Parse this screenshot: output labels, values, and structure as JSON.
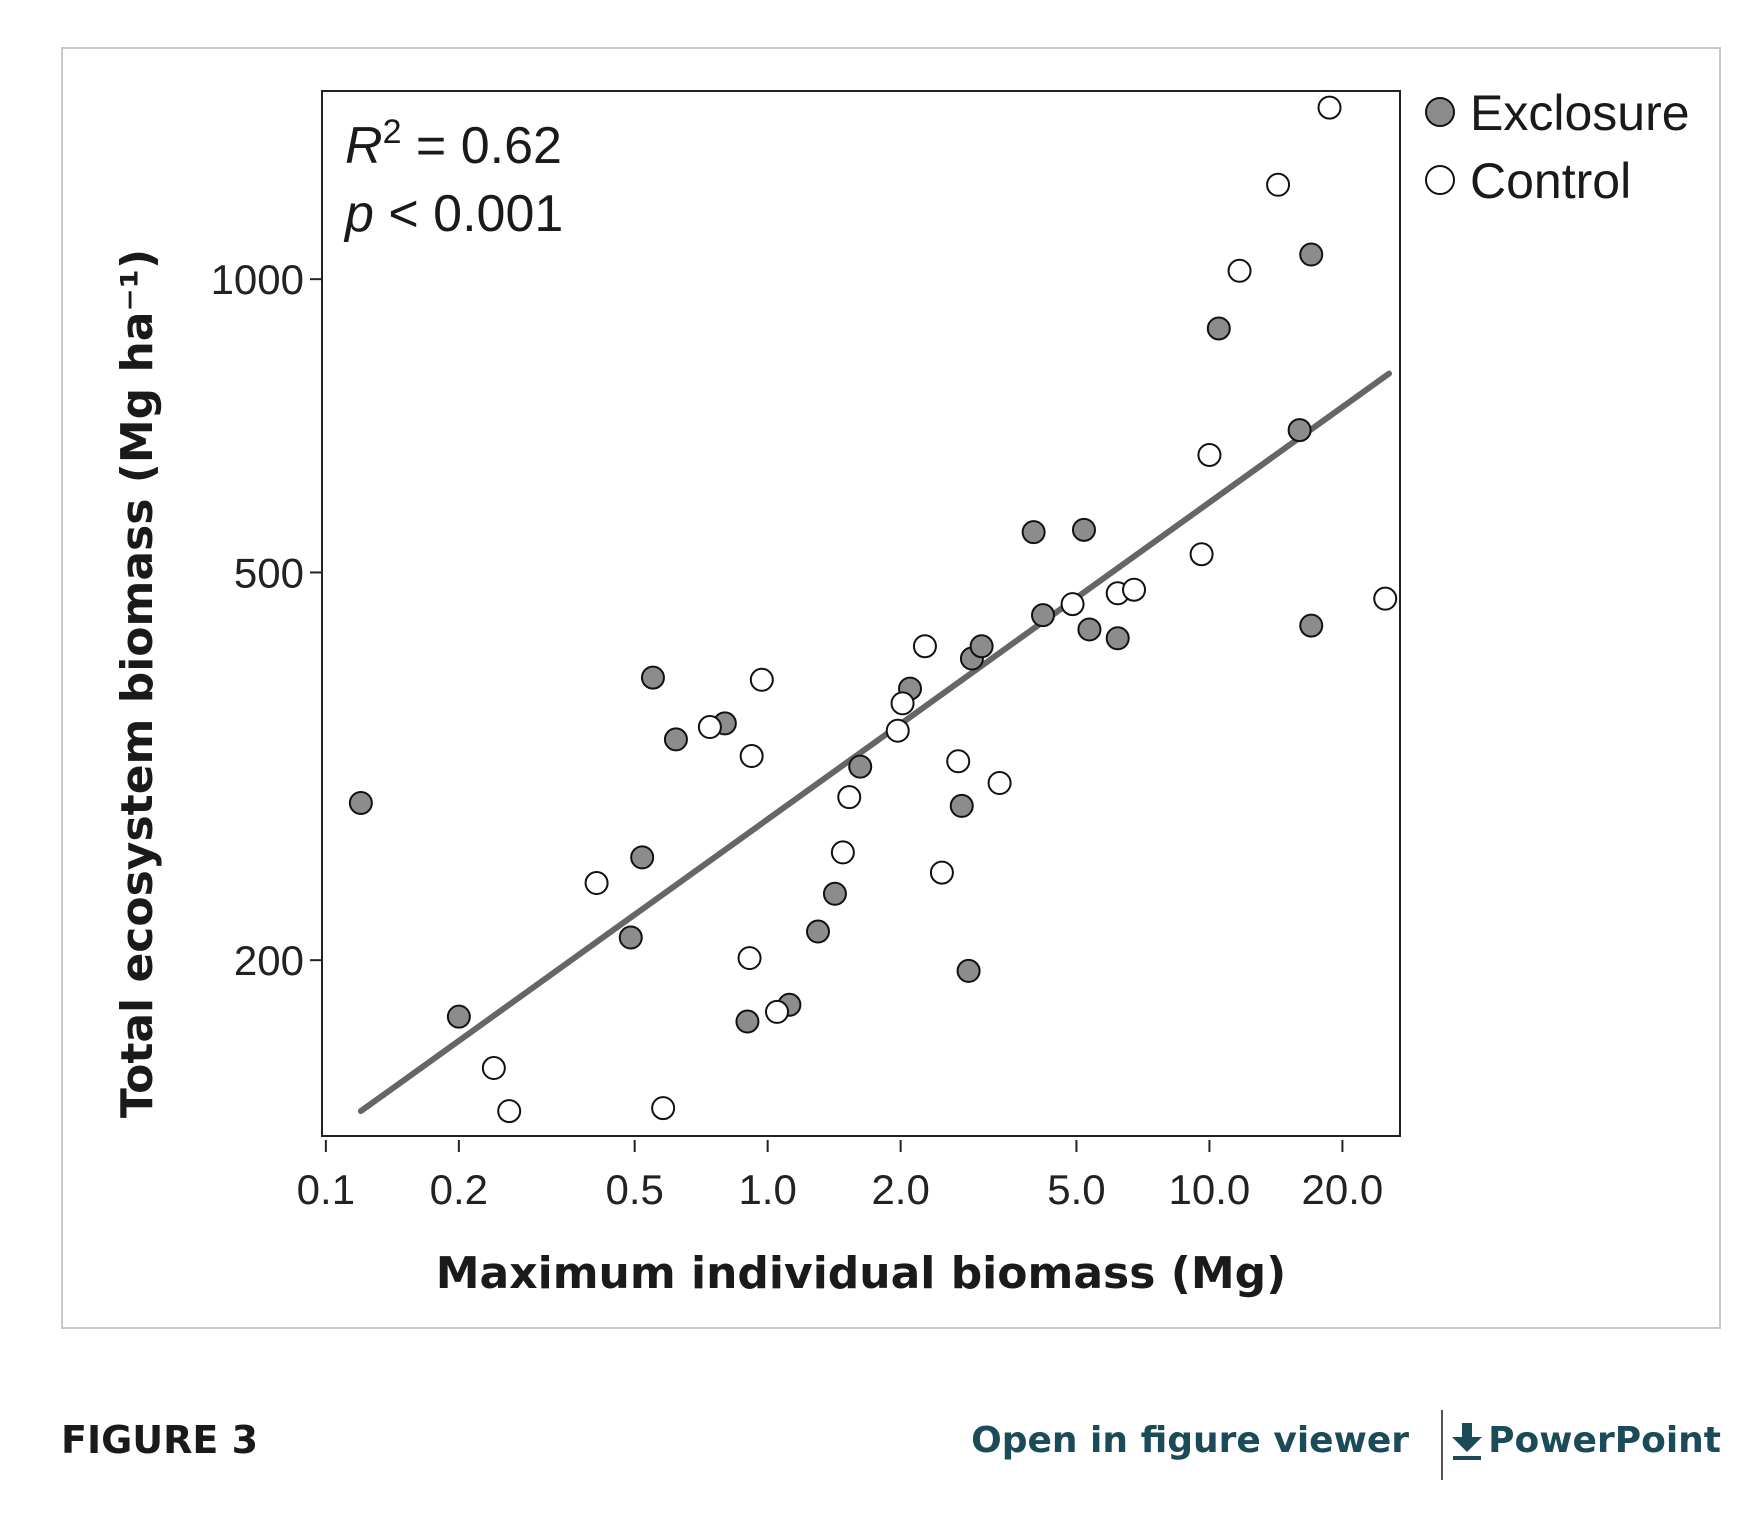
{
  "chart_data": {
    "type": "scatter",
    "xlabel": "Maximum individual biomass (Mg)",
    "ylabel": "Total ecosystem biomass (Mg ha⁻¹)",
    "x_scale": "log",
    "y_scale": "log",
    "xlim": [
      0.098,
      27.0
    ],
    "ylim": [
      132,
      1560
    ],
    "x_ticks": [
      0.1,
      0.2,
      0.5,
      1.0,
      2.0,
      5.0,
      10.0,
      20.0
    ],
    "x_tick_labels": [
      "0.1",
      "0.2",
      "0.5",
      "1.0",
      "2.0",
      "5.0",
      "10.0",
      "20.0"
    ],
    "y_ticks": [
      200,
      500,
      1000
    ],
    "y_tick_labels": [
      "200",
      "500",
      "1000"
    ],
    "grid": false,
    "legend_position": "top-right outside",
    "annotation": {
      "r2_symbol": "R",
      "r2_superscript": "2",
      "r2_value": " = 0.62",
      "p_symbol": "p",
      "p_value": " < 0.001"
    },
    "fit_line": {
      "x": [
        0.12,
        25.5
      ],
      "y": [
        140,
        800
      ],
      "color": "#666666"
    },
    "series": [
      {
        "name": "Exclosure",
        "fill": "#8c8c8c",
        "points": [
          [
            0.12,
            290
          ],
          [
            0.2,
            175
          ],
          [
            0.49,
            211
          ],
          [
            0.52,
            255
          ],
          [
            0.55,
            390
          ],
          [
            0.62,
            337
          ],
          [
            0.8,
            350
          ],
          [
            0.9,
            173
          ],
          [
            1.12,
            180
          ],
          [
            1.3,
            214
          ],
          [
            1.42,
            234
          ],
          [
            1.62,
            316
          ],
          [
            2.1,
            380
          ],
          [
            2.75,
            288
          ],
          [
            2.85,
            195
          ],
          [
            2.9,
            408
          ],
          [
            3.05,
            420
          ],
          [
            4.0,
            550
          ],
          [
            4.2,
            452
          ],
          [
            5.2,
            553
          ],
          [
            5.35,
            437
          ],
          [
            6.2,
            428
          ],
          [
            10.5,
            890
          ],
          [
            16.0,
            700
          ],
          [
            17.0,
            1060
          ],
          [
            17.0,
            441
          ]
        ]
      },
      {
        "name": "Control",
        "fill": "#ffffff",
        "points": [
          [
            0.24,
            155
          ],
          [
            0.26,
            140
          ],
          [
            0.41,
            240
          ],
          [
            0.58,
            141
          ],
          [
            0.74,
            347
          ],
          [
            0.92,
            324
          ],
          [
            0.91,
            201
          ],
          [
            0.97,
            388
          ],
          [
            1.05,
            177
          ],
          [
            1.48,
            258
          ],
          [
            1.53,
            294
          ],
          [
            1.97,
            344
          ],
          [
            2.02,
            367
          ],
          [
            2.27,
            420
          ],
          [
            2.7,
            320
          ],
          [
            2.48,
            246
          ],
          [
            3.35,
            304
          ],
          [
            4.9,
            464
          ],
          [
            6.2,
            476
          ],
          [
            6.75,
            480
          ],
          [
            9.6,
            522
          ],
          [
            10.0,
            660
          ],
          [
            11.7,
            1020
          ],
          [
            14.3,
            1250
          ],
          [
            18.7,
            1500
          ],
          [
            25.0,
            470
          ]
        ]
      }
    ]
  },
  "footer": {
    "figure_label": "FIGURE 3",
    "open_viewer_label": "Open in figure viewer",
    "powerpoint_label": "PowerPoint"
  }
}
